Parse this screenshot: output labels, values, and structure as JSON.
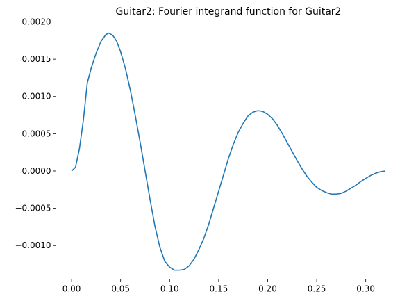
{
  "chart_data": {
    "type": "line",
    "title": "Guitar2: Fourier integrand function for Guitar2",
    "xlabel": "",
    "ylabel": "",
    "xlim": [
      -0.016,
      0.336
    ],
    "ylim": [
      -0.00145,
      0.002
    ],
    "x_ticks": [
      0.0,
      0.05,
      0.1,
      0.15,
      0.2,
      0.25,
      0.3
    ],
    "x_tick_labels": [
      "0.00",
      "0.05",
      "0.10",
      "0.15",
      "0.20",
      "0.25",
      "0.30"
    ],
    "y_ticks": [
      -0.001,
      -0.0005,
      0.0,
      0.0005,
      0.001,
      0.0015,
      0.002
    ],
    "y_tick_labels": [
      "−0.0010",
      "−0.0005",
      "0.0000",
      "0.0005",
      "0.0010",
      "0.0015",
      "0.0020"
    ],
    "grid": false,
    "line_color": "#1f77b4",
    "series": [
      {
        "x": [
          0.0,
          0.004,
          0.008,
          0.012,
          0.016,
          0.02,
          0.025,
          0.03,
          0.035,
          0.038,
          0.042,
          0.046,
          0.05,
          0.055,
          0.06,
          0.065,
          0.07,
          0.075,
          0.08,
          0.085,
          0.09,
          0.095,
          0.1,
          0.105,
          0.11,
          0.115,
          0.12,
          0.125,
          0.13,
          0.135,
          0.14,
          0.145,
          0.15,
          0.155,
          0.16,
          0.165,
          0.17,
          0.175,
          0.18,
          0.185,
          0.19,
          0.195,
          0.2,
          0.205,
          0.21,
          0.215,
          0.22,
          0.225,
          0.23,
          0.235,
          0.24,
          0.245,
          0.25,
          0.255,
          0.26,
          0.265,
          0.27,
          0.275,
          0.28,
          0.285,
          0.29,
          0.295,
          0.3,
          0.305,
          0.31,
          0.315,
          0.32
        ],
        "y": [
          0.0,
          5e-05,
          0.0003,
          0.00068,
          0.00118,
          0.00138,
          0.00158,
          0.00174,
          0.00183,
          0.00185,
          0.00182,
          0.00174,
          0.0016,
          0.00137,
          0.00108,
          0.00074,
          0.00038,
          0.0,
          -0.00038,
          -0.00074,
          -0.00102,
          -0.00121,
          -0.00129,
          -0.00133,
          -0.00133,
          -0.00132,
          -0.00127,
          -0.00118,
          -0.00105,
          -0.0009,
          -0.00071,
          -0.00049,
          -0.00027,
          -5e-05,
          0.00017,
          0.00036,
          0.00052,
          0.00064,
          0.00074,
          0.00079,
          0.00081,
          0.0008,
          0.00076,
          0.0007,
          0.00061,
          0.0005,
          0.00038,
          0.00026,
          0.00014,
          3e-05,
          -7e-05,
          -0.00015,
          -0.00022,
          -0.00026,
          -0.00029,
          -0.00031,
          -0.00031,
          -0.0003,
          -0.00027,
          -0.00023,
          -0.00019,
          -0.00014,
          -0.0001,
          -6e-05,
          -3e-05,
          -1e-05,
          0.0
        ]
      }
    ]
  }
}
